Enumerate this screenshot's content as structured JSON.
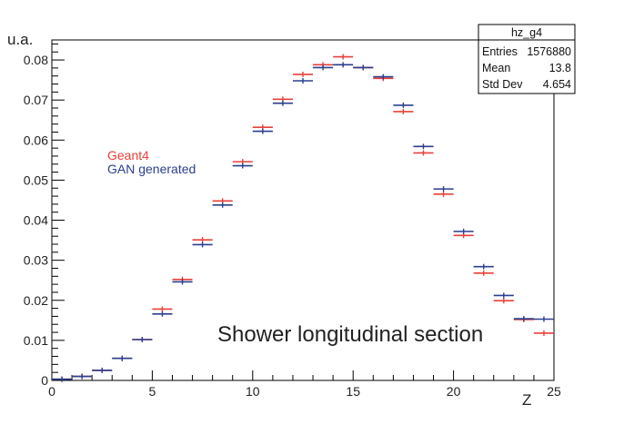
{
  "chart_data": {
    "type": "scatter",
    "ylabel": "u.a.",
    "xlabel": "Z",
    "xlim": [
      0,
      25
    ],
    "ylim": [
      0,
      0.085
    ],
    "x_ticks": [
      0,
      5,
      10,
      15,
      20,
      25
    ],
    "y_ticks": [
      0,
      0.01,
      0.02,
      0.03,
      0.04,
      0.05,
      0.06,
      0.07,
      0.08
    ],
    "y_tick_labels": [
      "0",
      "0.01",
      "0.02",
      "0.03",
      "0.04",
      "0.05",
      "0.06",
      "0.07",
      "0.08"
    ],
    "grid": false,
    "legend_position": "left",
    "annotation": "Shower longitudinal section",
    "series": [
      {
        "name": "Geant4",
        "color": "#e8403a",
        "x": [
          0.5,
          1.5,
          2.5,
          3.5,
          4.5,
          5.5,
          6.5,
          7.5,
          8.5,
          9.5,
          10.5,
          11.5,
          12.5,
          13.5,
          14.5,
          15.5,
          16.5,
          17.5,
          18.5,
          19.5,
          20.5,
          21.5,
          22.5,
          23.5,
          24.5
        ],
        "y": [
          0.0003,
          0.001,
          0.0025,
          0.0055,
          0.0102,
          0.0178,
          0.0252,
          0.0351,
          0.0448,
          0.0546,
          0.0632,
          0.0702,
          0.0764,
          0.0788,
          0.0808,
          0.0781,
          0.0754,
          0.0671,
          0.0568,
          0.0465,
          0.0362,
          0.0268,
          0.0199,
          0.0152,
          0.0118
        ]
      },
      {
        "name": "GAN generated",
        "color": "#2a3f8f",
        "x": [
          0.5,
          1.5,
          2.5,
          3.5,
          4.5,
          5.5,
          6.5,
          7.5,
          8.5,
          9.5,
          10.5,
          11.5,
          12.5,
          13.5,
          14.5,
          15.5,
          16.5,
          17.5,
          18.5,
          19.5,
          20.5,
          21.5,
          22.5,
          23.5,
          24.5
        ],
        "y": [
          0.0003,
          0.001,
          0.0025,
          0.0055,
          0.0102,
          0.0166,
          0.0246,
          0.0339,
          0.0438,
          0.0536,
          0.0622,
          0.0692,
          0.0748,
          0.0781,
          0.0788,
          0.0781,
          0.0758,
          0.0687,
          0.0584,
          0.0478,
          0.0372,
          0.0284,
          0.0212,
          0.0154,
          0.0153
        ]
      }
    ]
  },
  "stats_box": {
    "title": "hz_g4",
    "rows": [
      {
        "label": "Entries",
        "value": "1576880"
      },
      {
        "label": "Mean",
        "value": "13.8"
      },
      {
        "label": "Std Dev",
        "value": "4.654"
      }
    ]
  }
}
